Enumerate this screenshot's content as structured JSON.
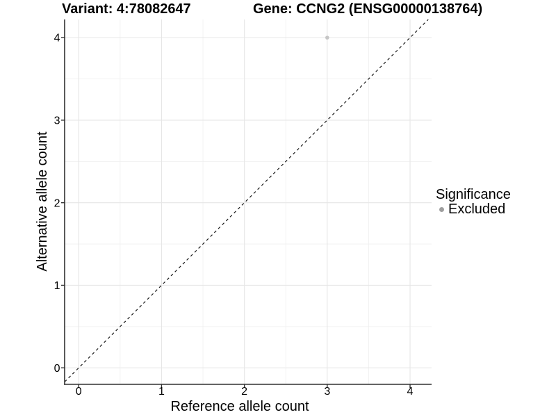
{
  "style": {
    "background": "#ffffff",
    "grid_major": "#e6e6e6",
    "grid_minor": "#efefef",
    "axis_line": "#303030",
    "tick_mark": "#303030",
    "tick_label_color": "#000000",
    "identity_line_color": "#1a1a1a",
    "point_color": "#c6c6c6",
    "legend_dot_color": "#9e9e9e"
  },
  "chart_data": {
    "type": "scatter",
    "titles": {
      "left": "Variant: 4:78082647",
      "right": "Gene: CCNG2 (ENSG00000138764)"
    },
    "xlabel": "Reference allele count",
    "ylabel": "Alternative allele count",
    "x_ticks": [
      0,
      1,
      2,
      3,
      4
    ],
    "y_ticks": [
      0,
      1,
      2,
      3,
      4
    ],
    "xlim": [
      -0.17,
      4.26
    ],
    "ylim": [
      -0.2,
      4.22
    ],
    "minor_grid_step": 0.5,
    "grid": "major+minor",
    "series": [
      {
        "name": "Excluded",
        "points": [
          {
            "x": 3,
            "y": 4
          }
        ]
      }
    ],
    "reference_line": {
      "slope": 1,
      "intercept": 0,
      "style": "dashed"
    },
    "legend": {
      "title": "Significance",
      "position": "right",
      "entries": [
        "Excluded"
      ]
    }
  }
}
